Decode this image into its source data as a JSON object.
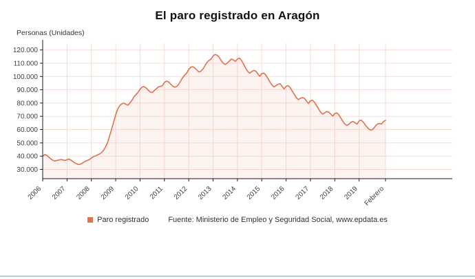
{
  "title": "El paro registrado en Aragón",
  "source": "Fuente: Ministerio de Empleo y Seguridad Social, www.epdata.es",
  "legend": {
    "label": "Paro registrado"
  },
  "colors": {
    "line": "#e0714f",
    "fill": "rgba(224,113,79,0.08)",
    "grid": "#f6ddd4",
    "axis": "#1a1a1a",
    "accent_bar": "#aecde8",
    "tick_text": "#404040"
  },
  "chart_data": {
    "type": "area",
    "title": "El paro registrado en Aragón",
    "ylabel": "Personas (Unidades)",
    "xlabel": "",
    "grid": true,
    "legend_position": "bottom",
    "x_start": "2006-01",
    "x_end": "2020-02",
    "ylim": [
      23000,
      125000
    ],
    "y_ticks": [
      30000,
      40000,
      50000,
      60000,
      70000,
      80000,
      90000,
      100000,
      110000,
      120000
    ],
    "x_ticks": [
      {
        "label": "2006",
        "i": 0
      },
      {
        "label": "2007",
        "i": 12
      },
      {
        "label": "2008",
        "i": 24
      },
      {
        "label": "2009",
        "i": 36
      },
      {
        "label": "2010",
        "i": 48
      },
      {
        "label": "2011",
        "i": 60
      },
      {
        "label": "2012",
        "i": 72
      },
      {
        "label": "2013",
        "i": 84
      },
      {
        "label": "2014",
        "i": 96
      },
      {
        "label": "2015",
        "i": 108
      },
      {
        "label": "2016",
        "i": 120
      },
      {
        "label": "2017",
        "i": 132
      },
      {
        "label": "2018",
        "i": 144
      },
      {
        "label": "2019",
        "i": 156
      },
      {
        "label": "Febrero",
        "i": 169
      }
    ],
    "series": [
      {
        "name": "Paro registrado",
        "unit": "personas",
        "frequency": "monthly",
        "values": [
          39800,
          41200,
          40600,
          39200,
          37900,
          36900,
          36300,
          36700,
          37100,
          37400,
          37100,
          36700,
          37300,
          37800,
          36900,
          35800,
          34800,
          34000,
          33600,
          34200,
          35100,
          36100,
          36700,
          37400,
          38600,
          39600,
          40100,
          40900,
          41600,
          42700,
          44300,
          46800,
          50300,
          55200,
          60400,
          65800,
          71200,
          75600,
          78100,
          79400,
          79900,
          79000,
          78400,
          80000,
          82100,
          84600,
          86500,
          88000,
          90400,
          92000,
          92400,
          91300,
          89800,
          88300,
          87900,
          89400,
          90600,
          92100,
          92600,
          93100,
          95400,
          96500,
          96000,
          94400,
          92900,
          91900,
          92400,
          94000,
          96600,
          99100,
          101100,
          102600,
          105400,
          107000,
          107400,
          106400,
          104900,
          103400,
          104000,
          105600,
          108100,
          110600,
          112100,
          113100,
          115400,
          116600,
          116100,
          114400,
          112000,
          110000,
          109000,
          110100,
          111600,
          113100,
          112500,
          111400,
          113100,
          113900,
          112100,
          109400,
          106400,
          104000,
          102500,
          103600,
          104600,
          104100,
          102100,
          100100,
          102100,
          102600,
          101100,
          98500,
          96000,
          93600,
          92100,
          93100,
          94100,
          94600,
          92600,
          90600,
          92600,
          93100,
          91600,
          89100,
          86600,
          84100,
          82600,
          83600,
          84100,
          83600,
          81600,
          79600,
          81600,
          82100,
          80600,
          78100,
          75600,
          73100,
          71600,
          72600,
          73600,
          73100,
          71600,
          70100,
          72100,
          72600,
          71100,
          68600,
          66100,
          64100,
          63100,
          64100,
          65600,
          66100,
          65100,
          64100,
          66600,
          67100,
          65600,
          63600,
          61600,
          60100,
          59600,
          60600,
          62600,
          64100,
          64600,
          64100,
          66100,
          66900
        ]
      }
    ]
  }
}
